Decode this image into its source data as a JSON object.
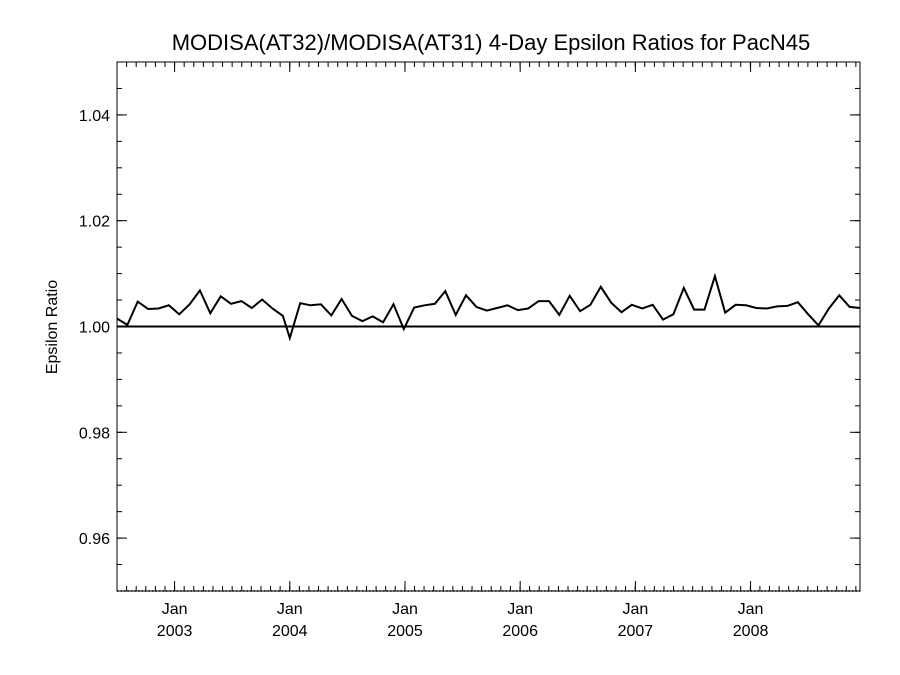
{
  "chart_data": {
    "type": "line",
    "title": "MODISA(AT32)/MODISA(AT31) 4-Day Epsilon Ratios for PacN45",
    "xlabel": "",
    "ylabel": "Epsilon Ratio",
    "xlim": [
      2002.5,
      2008.95
    ],
    "ylim": [
      0.95,
      1.05
    ],
    "yticks": [
      0.96,
      0.98,
      1.0,
      1.02,
      1.04
    ],
    "ytick_labels": [
      "0.96",
      "0.98",
      "1.00",
      "1.02",
      "1.04"
    ],
    "yminor_step": 0.005,
    "xticks": [
      {
        "x": 2003.0,
        "month": "Jan",
        "year": "2003"
      },
      {
        "x": 2004.0,
        "month": "Jan",
        "year": "2004"
      },
      {
        "x": 2005.0,
        "month": "Jan",
        "year": "2005"
      },
      {
        "x": 2006.0,
        "month": "Jan",
        "year": "2006"
      },
      {
        "x": 2007.0,
        "month": "Jan",
        "year": "2007"
      },
      {
        "x": 2008.0,
        "month": "Jan",
        "year": "2008"
      }
    ],
    "xminor_step": 0.0833,
    "reference_line": 1.0,
    "grid": false,
    "series": [
      {
        "x": [
          2002.5,
          2002.59,
          2002.68,
          2002.77,
          2002.86,
          2002.95,
          2003.04,
          2003.13,
          2003.22,
          2003.31,
          2003.4,
          2003.49,
          2003.58,
          2003.67,
          2003.76,
          2003.85,
          2003.94,
          2004.0,
          2004.09,
          2004.18,
          2004.27,
          2004.36,
          2004.45,
          2004.54,
          2004.63,
          2004.72,
          2004.81,
          2004.9,
          2004.99,
          2005.08,
          2005.17,
          2005.26,
          2005.35,
          2005.44,
          2005.53,
          2005.62,
          2005.71,
          2005.8,
          2005.89,
          2005.98,
          2006.07,
          2006.16,
          2006.25,
          2006.34,
          2006.43,
          2006.52,
          2006.61,
          2006.7,
          2006.79,
          2006.88,
          2006.97,
          2007.06,
          2007.15,
          2007.24,
          2007.33,
          2007.42,
          2007.51,
          2007.6,
          2007.69,
          2007.78,
          2007.87,
          2007.96,
          2008.05,
          2008.14,
          2008.23,
          2008.32,
          2008.41,
          2008.5,
          2008.59,
          2008.68,
          2008.77,
          2008.86,
          2008.95
        ],
        "y": [
          1.0015,
          1.0003,
          1.0047,
          1.0033,
          1.0034,
          1.004,
          1.0023,
          1.0042,
          1.0068,
          1.0025,
          1.0057,
          1.0043,
          1.0048,
          1.0035,
          1.0051,
          1.0034,
          1.002,
          0.9978,
          1.0044,
          1.004,
          1.0042,
          1.0021,
          1.0052,
          1.002,
          1.001,
          1.0019,
          1.0008,
          1.0042,
          0.9995,
          1.0036,
          1.004,
          1.0043,
          1.0067,
          1.0022,
          1.0059,
          1.0037,
          1.003,
          1.0035,
          1.004,
          1.0031,
          1.0034,
          1.0048,
          1.0048,
          1.0022,
          1.0058,
          1.0029,
          1.0041,
          1.0075,
          1.0045,
          1.0027,
          1.0041,
          1.0034,
          1.0041,
          1.0013,
          1.0023,
          1.0073,
          1.0032,
          1.0032,
          1.0095,
          1.0026,
          1.0041,
          1.004,
          1.0035,
          1.0034,
          1.0038,
          1.0039,
          1.0046,
          1.0023,
          1.0002,
          1.0034,
          1.0059,
          1.0037,
          1.0035
        ]
      }
    ]
  }
}
